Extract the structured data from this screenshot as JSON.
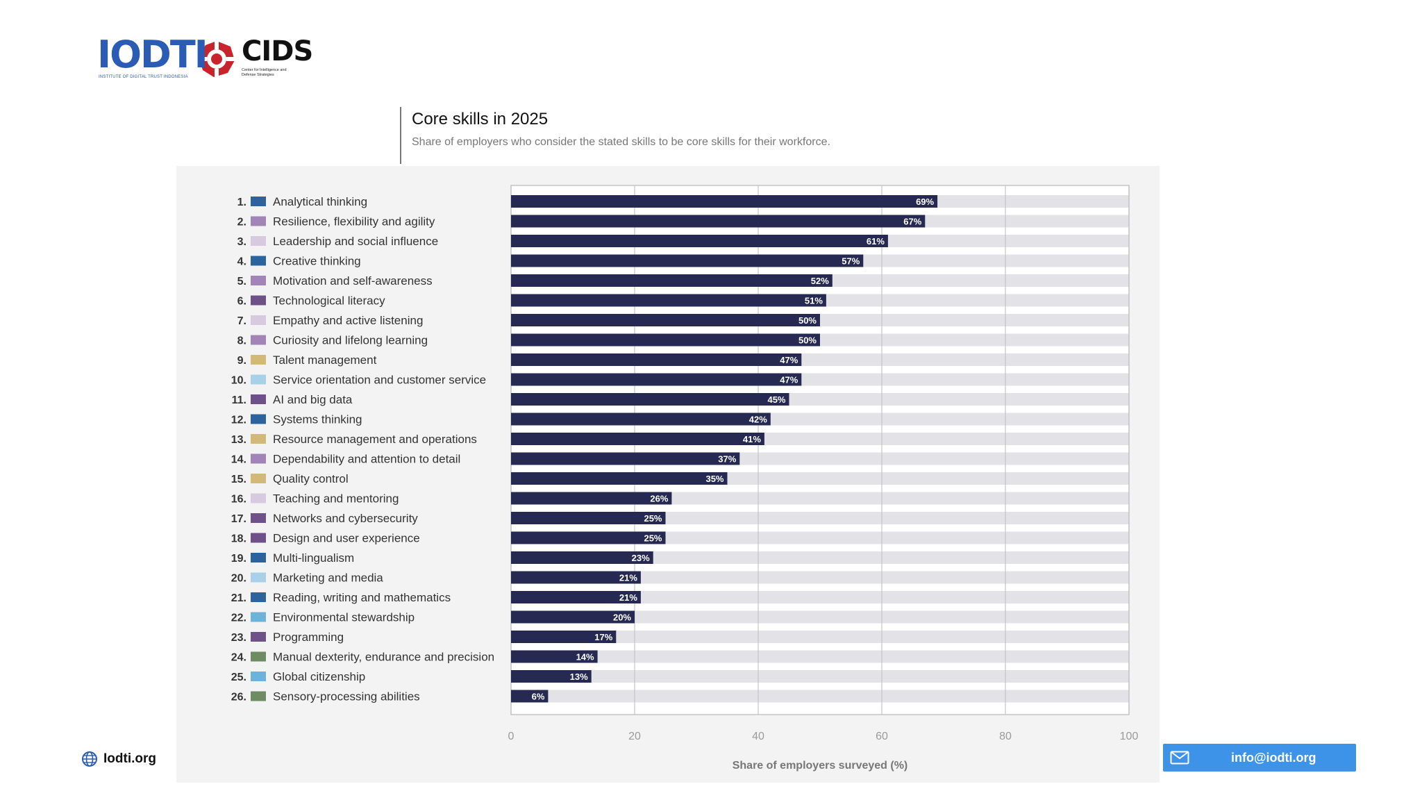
{
  "logos": {
    "iodti_name": "IODTI",
    "iodti_tagline": "INSTITUTE OF DIGITAL TRUST INDONESIA",
    "cids_name": "CIDS",
    "cids_tagline": "Center for Intelligence and Defense Strategies"
  },
  "footer": {
    "website": "Iodti.org",
    "email": "info@iodti.org"
  },
  "colors": {
    "bar": "#262a52",
    "track": "#e2e2e7",
    "grid": "#c4c4c4",
    "panel_bg": "#f3f3f3",
    "email_bg": "#3d93e8",
    "iodti_blue": "#2a5bb5",
    "cids_red": "#c8242b"
  },
  "chart_data": {
    "type": "bar",
    "orientation": "horizontal",
    "title": "Core skills in 2025",
    "subtitle": "Share of employers who consider the stated skills to be core skills for their workforce.",
    "xlabel": "Share of employers surveyed (%)",
    "ylabel": "",
    "xlim": [
      0,
      100
    ],
    "xticks": [
      0,
      20,
      40,
      60,
      80,
      100
    ],
    "value_suffix": "%",
    "grid": true,
    "categories": [
      {
        "rank": "1.",
        "label": "Analytical thinking",
        "value": 69,
        "swatch": "#2b649c"
      },
      {
        "rank": "2.",
        "label": "Resilience, flexibility and agility",
        "value": 67,
        "swatch": "#a384b9"
      },
      {
        "rank": "3.",
        "label": "Leadership and social influence",
        "value": 61,
        "swatch": "#d6c9e0"
      },
      {
        "rank": "4.",
        "label": "Creative thinking",
        "value": 57,
        "swatch": "#2b649c"
      },
      {
        "rank": "5.",
        "label": "Motivation and self-awareness",
        "value": 52,
        "swatch": "#a384b9"
      },
      {
        "rank": "6.",
        "label": "Technological literacy",
        "value": 51,
        "swatch": "#6e5189"
      },
      {
        "rank": "7.",
        "label": "Empathy and active listening",
        "value": 50,
        "swatch": "#d6c9e0"
      },
      {
        "rank": "8.",
        "label": "Curiosity and lifelong learning",
        "value": 50,
        "swatch": "#a384b9"
      },
      {
        "rank": "9.",
        "label": "Talent management",
        "value": 47,
        "swatch": "#d2b978"
      },
      {
        "rank": "10.",
        "label": "Service orientation and customer service",
        "value": 47,
        "swatch": "#a8d0e8"
      },
      {
        "rank": "11.",
        "label": "AI and big data",
        "value": 45,
        "swatch": "#6e5189"
      },
      {
        "rank": "12.",
        "label": "Systems thinking",
        "value": 42,
        "swatch": "#2b649c"
      },
      {
        "rank": "13.",
        "label": "Resource management and operations",
        "value": 41,
        "swatch": "#d2b978"
      },
      {
        "rank": "14.",
        "label": "Dependability and attention to detail",
        "value": 37,
        "swatch": "#a384b9"
      },
      {
        "rank": "15.",
        "label": "Quality control",
        "value": 35,
        "swatch": "#d2b978"
      },
      {
        "rank": "16.",
        "label": "Teaching and mentoring",
        "value": 26,
        "swatch": "#d6c9e0"
      },
      {
        "rank": "17.",
        "label": "Networks and cybersecurity",
        "value": 25,
        "swatch": "#6e5189"
      },
      {
        "rank": "18.",
        "label": "Design and user experience",
        "value": 25,
        "swatch": "#6e5189"
      },
      {
        "rank": "19.",
        "label": "Multi-lingualism",
        "value": 23,
        "swatch": "#2b649c"
      },
      {
        "rank": "20.",
        "label": "Marketing and media",
        "value": 21,
        "swatch": "#a8d0e8"
      },
      {
        "rank": "21.",
        "label": "Reading, writing and mathematics",
        "value": 21,
        "swatch": "#2b649c"
      },
      {
        "rank": "22.",
        "label": "Environmental stewardship",
        "value": 20,
        "swatch": "#6cb3da"
      },
      {
        "rank": "23.",
        "label": "Programming",
        "value": 17,
        "swatch": "#6e5189"
      },
      {
        "rank": "24.",
        "label": "Manual dexterity, endurance and precision",
        "value": 14,
        "swatch": "#6e8b64"
      },
      {
        "rank": "25.",
        "label": "Global citizenship",
        "value": 13,
        "swatch": "#6cb3da"
      },
      {
        "rank": "26.",
        "label": "Sensory-processing abilities",
        "value": 6,
        "swatch": "#6e8b64"
      }
    ]
  }
}
